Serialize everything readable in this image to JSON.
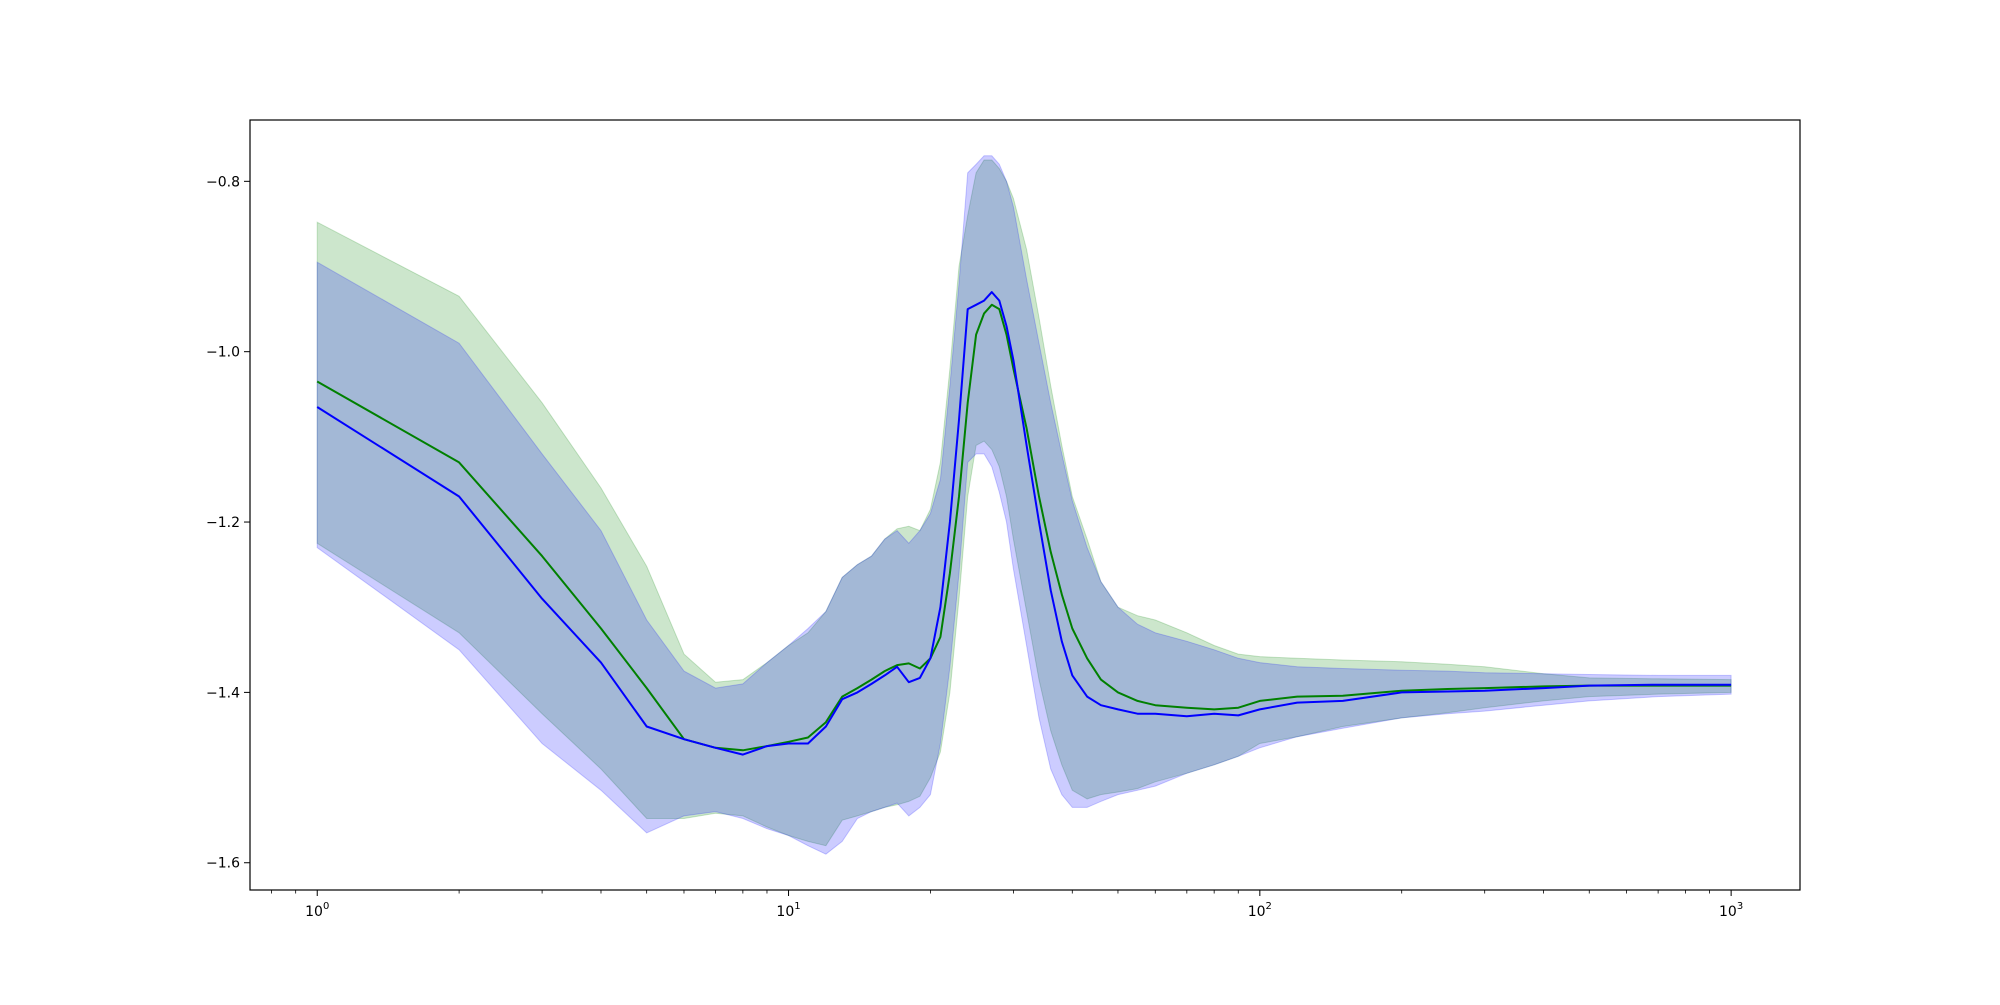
{
  "chart_data": {
    "type": "line",
    "title": "",
    "xlabel": "",
    "ylabel": "",
    "xscale": "log",
    "xlim": [
      0.72,
      1400
    ],
    "ylim": [
      -1.632,
      -0.728
    ],
    "grid": false,
    "legend": "none",
    "x_ticks": [
      {
        "value": 1,
        "base": "10",
        "exp": "0"
      },
      {
        "value": 10,
        "base": "10",
        "exp": "1"
      },
      {
        "value": 100,
        "base": "10",
        "exp": "2"
      },
      {
        "value": 1000,
        "base": "10",
        "exp": "3"
      }
    ],
    "y_ticks": [
      {
        "value": -1.6,
        "label": "−1.6"
      },
      {
        "value": -1.4,
        "label": "−1.4"
      },
      {
        "value": -1.2,
        "label": "−1.2"
      },
      {
        "value": -1.0,
        "label": "−1.0"
      },
      {
        "value": -0.8,
        "label": "−0.8"
      }
    ],
    "series": [
      {
        "color": "#008000",
        "band_color": "#008000",
        "band_opacity": 0.2,
        "x": [
          1,
          2,
          3,
          4,
          5,
          6,
          7,
          8,
          9,
          10,
          11,
          12,
          13,
          14,
          15,
          16,
          17,
          18,
          19,
          20,
          21,
          22,
          23,
          24,
          25,
          26,
          27,
          28,
          29,
          30,
          32,
          34,
          36,
          38,
          40,
          43,
          46,
          50,
          55,
          60,
          70,
          80,
          90,
          100,
          120,
          150,
          200,
          250,
          300,
          400,
          500,
          700,
          1000
        ],
        "mean": [
          -1.035,
          -1.13,
          -1.24,
          -1.325,
          -1.395,
          -1.455,
          -1.465,
          -1.468,
          -1.463,
          -1.458,
          -1.453,
          -1.435,
          -1.405,
          -1.395,
          -1.385,
          -1.375,
          -1.368,
          -1.366,
          -1.372,
          -1.36,
          -1.335,
          -1.26,
          -1.17,
          -1.06,
          -0.98,
          -0.955,
          -0.945,
          -0.95,
          -0.98,
          -1.02,
          -1.09,
          -1.17,
          -1.235,
          -1.285,
          -1.325,
          -1.36,
          -1.385,
          -1.4,
          -1.41,
          -1.415,
          -1.418,
          -1.42,
          -1.418,
          -1.41,
          -1.405,
          -1.404,
          -1.398,
          -1.396,
          -1.395,
          -1.393,
          -1.392,
          -1.392,
          -1.392
        ],
        "upper": [
          -0.848,
          -0.935,
          -1.06,
          -1.16,
          -1.252,
          -1.355,
          -1.388,
          -1.385,
          -1.365,
          -1.345,
          -1.33,
          -1.305,
          -1.265,
          -1.25,
          -1.24,
          -1.22,
          -1.208,
          -1.205,
          -1.21,
          -1.185,
          -1.13,
          -1.02,
          -0.9,
          -0.84,
          -0.79,
          -0.775,
          -0.775,
          -0.785,
          -0.8,
          -0.82,
          -0.88,
          -0.96,
          -1.04,
          -1.11,
          -1.17,
          -1.22,
          -1.27,
          -1.3,
          -1.31,
          -1.315,
          -1.33,
          -1.345,
          -1.355,
          -1.358,
          -1.36,
          -1.362,
          -1.364,
          -1.367,
          -1.37,
          -1.378,
          -1.383,
          -1.384,
          -1.385
        ],
        "lower": [
          -1.225,
          -1.33,
          -1.425,
          -1.49,
          -1.548,
          -1.548,
          -1.542,
          -1.545,
          -1.558,
          -1.568,
          -1.575,
          -1.58,
          -1.55,
          -1.545,
          -1.54,
          -1.535,
          -1.532,
          -1.528,
          -1.522,
          -1.5,
          -1.47,
          -1.4,
          -1.29,
          -1.17,
          -1.11,
          -1.105,
          -1.115,
          -1.135,
          -1.17,
          -1.22,
          -1.305,
          -1.385,
          -1.445,
          -1.485,
          -1.515,
          -1.525,
          -1.52,
          -1.517,
          -1.513,
          -1.505,
          -1.495,
          -1.485,
          -1.475,
          -1.46,
          -1.452,
          -1.44,
          -1.43,
          -1.424,
          -1.418,
          -1.41,
          -1.405,
          -1.402,
          -1.4
        ]
      },
      {
        "color": "#0000ff",
        "band_color": "#0000ff",
        "band_opacity": 0.2,
        "x": [
          1,
          2,
          3,
          4,
          5,
          6,
          7,
          8,
          9,
          10,
          11,
          12,
          13,
          14,
          15,
          16,
          17,
          18,
          19,
          20,
          21,
          22,
          23,
          24,
          25,
          26,
          27,
          28,
          29,
          30,
          32,
          34,
          36,
          38,
          40,
          43,
          46,
          50,
          55,
          60,
          70,
          80,
          90,
          100,
          120,
          150,
          200,
          250,
          300,
          400,
          500,
          700,
          1000
        ],
        "mean": [
          -1.065,
          -1.17,
          -1.29,
          -1.365,
          -1.44,
          -1.455,
          -1.465,
          -1.473,
          -1.463,
          -1.46,
          -1.46,
          -1.44,
          -1.408,
          -1.4,
          -1.39,
          -1.38,
          -1.37,
          -1.388,
          -1.383,
          -1.36,
          -1.3,
          -1.2,
          -1.08,
          -0.95,
          -0.945,
          -0.94,
          -0.93,
          -0.94,
          -0.97,
          -1.01,
          -1.11,
          -1.2,
          -1.28,
          -1.34,
          -1.38,
          -1.405,
          -1.415,
          -1.42,
          -1.425,
          -1.425,
          -1.428,
          -1.425,
          -1.427,
          -1.42,
          -1.412,
          -1.41,
          -1.4,
          -1.399,
          -1.398,
          -1.395,
          -1.392,
          -1.391,
          -1.391
        ],
        "upper": [
          -0.895,
          -0.99,
          -1.12,
          -1.21,
          -1.315,
          -1.375,
          -1.395,
          -1.39,
          -1.365,
          -1.345,
          -1.325,
          -1.305,
          -1.265,
          -1.25,
          -1.24,
          -1.22,
          -1.21,
          -1.225,
          -1.21,
          -1.19,
          -1.15,
          -1.04,
          -0.92,
          -0.79,
          -0.78,
          -0.77,
          -0.77,
          -0.78,
          -0.8,
          -0.83,
          -0.915,
          -0.99,
          -1.06,
          -1.12,
          -1.175,
          -1.23,
          -1.27,
          -1.3,
          -1.32,
          -1.33,
          -1.34,
          -1.35,
          -1.36,
          -1.365,
          -1.37,
          -1.372,
          -1.374,
          -1.375,
          -1.377,
          -1.378,
          -1.379,
          -1.38,
          -1.38
        ],
        "lower": [
          -1.23,
          -1.35,
          -1.46,
          -1.515,
          -1.565,
          -1.545,
          -1.54,
          -1.548,
          -1.56,
          -1.568,
          -1.58,
          -1.59,
          -1.575,
          -1.548,
          -1.54,
          -1.535,
          -1.53,
          -1.545,
          -1.535,
          -1.52,
          -1.46,
          -1.37,
          -1.26,
          -1.13,
          -1.12,
          -1.12,
          -1.135,
          -1.165,
          -1.2,
          -1.255,
          -1.345,
          -1.43,
          -1.49,
          -1.52,
          -1.535,
          -1.535,
          -1.528,
          -1.52,
          -1.515,
          -1.51,
          -1.495,
          -1.485,
          -1.475,
          -1.465,
          -1.452,
          -1.442,
          -1.43,
          -1.425,
          -1.422,
          -1.415,
          -1.41,
          -1.405,
          -1.402
        ]
      }
    ]
  }
}
